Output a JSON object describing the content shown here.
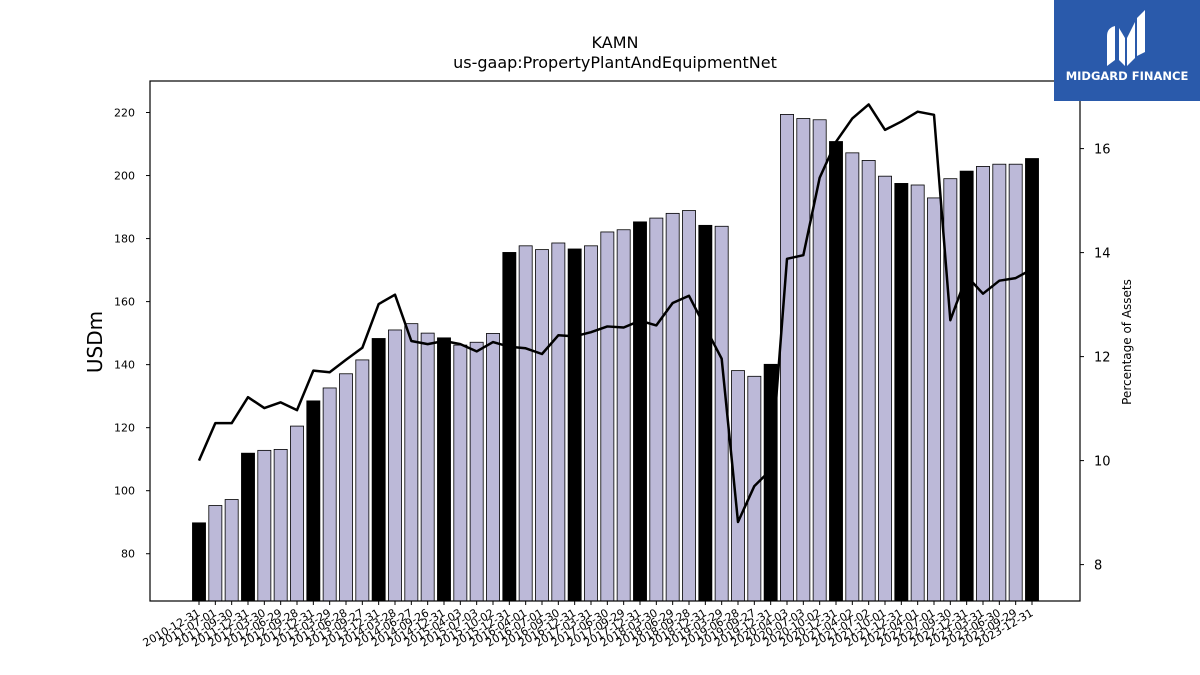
{
  "chart_data": {
    "type": "bar",
    "title": "KAMN",
    "subtitle": "us-gaap:PropertyPlantAndEquipmentNet",
    "ylabel": "USDm",
    "y2label": "Percentage of Assets",
    "ylim": [
      65,
      230
    ],
    "y2lim": [
      7.3,
      17.3
    ],
    "yticks": [
      80,
      100,
      120,
      140,
      160,
      180,
      200,
      220
    ],
    "y2ticks": [
      8,
      10,
      12,
      14,
      16
    ],
    "categories": [
      "2010-12-31",
      "2011-07-01",
      "2011-09-30",
      "2011-12-31",
      "2012-03-30",
      "2012-06-29",
      "2012-09-28",
      "2012-12-31",
      "2013-03-29",
      "2013-06-28",
      "2013-09-27",
      "2013-12-31",
      "2014-03-28",
      "2014-06-27",
      "2014-09-26",
      "2014-12-31",
      "2015-04-03",
      "2015-07-03",
      "2015-10-02",
      "2015-12-31",
      "2016-04-01",
      "2016-07-01",
      "2016-09-30",
      "2016-12-31",
      "2017-03-31",
      "2017-06-30",
      "2017-09-29",
      "2017-12-31",
      "2018-03-30",
      "2018-06-29",
      "2018-09-28",
      "2018-12-31",
      "2019-03-29",
      "2019-06-28",
      "2019-09-27",
      "2019-12-31",
      "2020-04-03",
      "2020-07-03",
      "2020-10-02",
      "2020-12-31",
      "2021-04-02",
      "2021-07-02",
      "2021-10-01",
      "2021-12-31",
      "2022-04-01",
      "2022-07-01",
      "2022-09-30",
      "2022-12-31",
      "2023-03-31",
      "2023-06-30",
      "2023-09-29",
      "2023-12-31"
    ],
    "series": [
      {
        "type": "bar",
        "axis": "left",
        "values": [
          89.8,
          95.3,
          97.2,
          111.9,
          112.8,
          113.1,
          120.5,
          128.5,
          132.6,
          137.1,
          141.5,
          148.3,
          151.0,
          153.0,
          150.0,
          148.5,
          146.2,
          147.1,
          149.9,
          175.6,
          177.7,
          176.5,
          178.6,
          176.7,
          177.7,
          182.1,
          182.8,
          185.3,
          186.5,
          188.0,
          188.9,
          184.2,
          183.9,
          138.1,
          136.3,
          140.1,
          219.4,
          218.1,
          217.7,
          210.8,
          207.2,
          204.8,
          199.8,
          197.5,
          197.0,
          192.9,
          199.0,
          201.4,
          202.9,
          203.6,
          203.6,
          205.4
        ],
        "highlight": [
          0,
          3,
          7,
          11,
          15,
          19,
          23,
          27,
          31,
          35,
          39,
          43,
          47,
          51
        ],
        "colors": {
          "normal": "#bcb9d8",
          "highlight": "#000000"
        }
      },
      {
        "type": "line",
        "axis": "right",
        "values": [
          10.0,
          10.72,
          10.72,
          11.22,
          11.01,
          11.12,
          10.97,
          11.73,
          11.7,
          11.94,
          12.17,
          13.01,
          13.19,
          12.3,
          12.24,
          12.3,
          12.24,
          12.1,
          12.28,
          12.19,
          12.16,
          12.05,
          12.41,
          12.39,
          12.47,
          12.58,
          12.56,
          12.69,
          12.6,
          13.03,
          13.17,
          12.56,
          11.96,
          8.82,
          9.51,
          9.82,
          13.88,
          13.95,
          15.44,
          16.13,
          16.58,
          16.85,
          16.36,
          16.52,
          16.71,
          16.65,
          12.7,
          13.55,
          13.21,
          13.46,
          13.51,
          13.68
        ],
        "color": "#000000"
      }
    ]
  },
  "logo": {
    "text": "MIDGARD FINANCE"
  }
}
